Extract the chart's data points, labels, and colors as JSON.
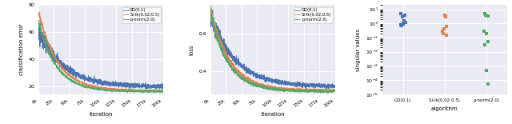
{
  "fig_width": 6.4,
  "fig_height": 1.55,
  "dpi": 100,
  "legend_labels": [
    "GD(0.1)",
    "SI-lk(0.02,0.5)",
    "p-norm(2.0)"
  ],
  "colors": [
    "#4c72b0",
    "#dd8452",
    "#55a868"
  ],
  "xlabel_line": "Iteration",
  "ylabel_line1": "classification error",
  "ylabel_line2": "loss",
  "ylabel_scatter": "singular values",
  "xlabel_scatter": "algorithm",
  "xtick_labels": [
    "0k",
    "25k",
    "50k",
    "75k",
    "100k",
    "125k",
    "150k",
    "175k",
    "200k"
  ],
  "xtick_vals": [
    0,
    25000,
    50000,
    75000,
    100000,
    125000,
    150000,
    175000,
    200000
  ],
  "background_color": "#eaeaf2",
  "grid_color": "white",
  "err_ylim": [
    14,
    80
  ],
  "loss_ylim": [
    0.28,
    0.75
  ],
  "scatter_ylim_low": 1e-05,
  "scatter_ylim_high": 20,
  "scatter_xtick_labels": [
    "GD(0.1)",
    "SI-lk(0.02 0.5)",
    "p-norm(2.0)"
  ]
}
